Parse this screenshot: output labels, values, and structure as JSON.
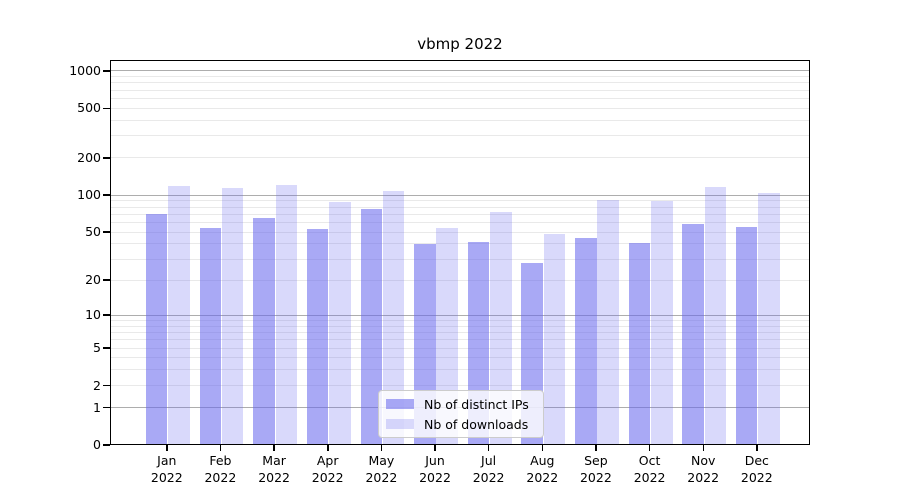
{
  "chart_data": {
    "type": "bar",
    "title": "vbmp 2022",
    "y_scale": "log10(v+1)",
    "categories": [
      "Jan",
      "Feb",
      "Mar",
      "Apr",
      "May",
      "Jun",
      "Jul",
      "Aug",
      "Sep",
      "Oct",
      "Nov",
      "Dec"
    ],
    "category_sublabel": "2022",
    "series": [
      {
        "name": "Nb of distinct IPs",
        "color": "#6666ee",
        "opacity": 0.56,
        "values": [
          71,
          55,
          66,
          54,
          78,
          40,
          42,
          28,
          45,
          41,
          59,
          56
        ]
      },
      {
        "name": "Nb of downloads",
        "color": "#6666ee",
        "opacity": 0.25,
        "values": [
          119,
          116,
          121,
          88,
          108,
          55,
          73,
          49,
          92,
          91,
          117,
          105
        ]
      }
    ],
    "y_axis": {
      "tick_values": [
        0,
        1,
        2,
        5,
        10,
        20,
        50,
        100,
        200,
        500,
        1000
      ],
      "tick_labels": [
        "0",
        "1",
        "2",
        "5",
        "10",
        "20",
        "50",
        "100",
        "200",
        "500",
        "1000"
      ],
      "major_gridlines": [
        1,
        10,
        100,
        1000
      ],
      "minor_gridlines": [
        2,
        3,
        4,
        5,
        6,
        7,
        8,
        9,
        20,
        30,
        40,
        50,
        60,
        70,
        80,
        90,
        200,
        300,
        400,
        500,
        600,
        700,
        800,
        900
      ]
    },
    "legend": {
      "items": [
        "Nb of distinct IPs",
        "Nb of downloads"
      ]
    },
    "colors": {
      "major_gridline": "#adadad",
      "minor_gridline": "#e9e9e9",
      "spine": "#000000",
      "background": "#ffffff"
    }
  }
}
